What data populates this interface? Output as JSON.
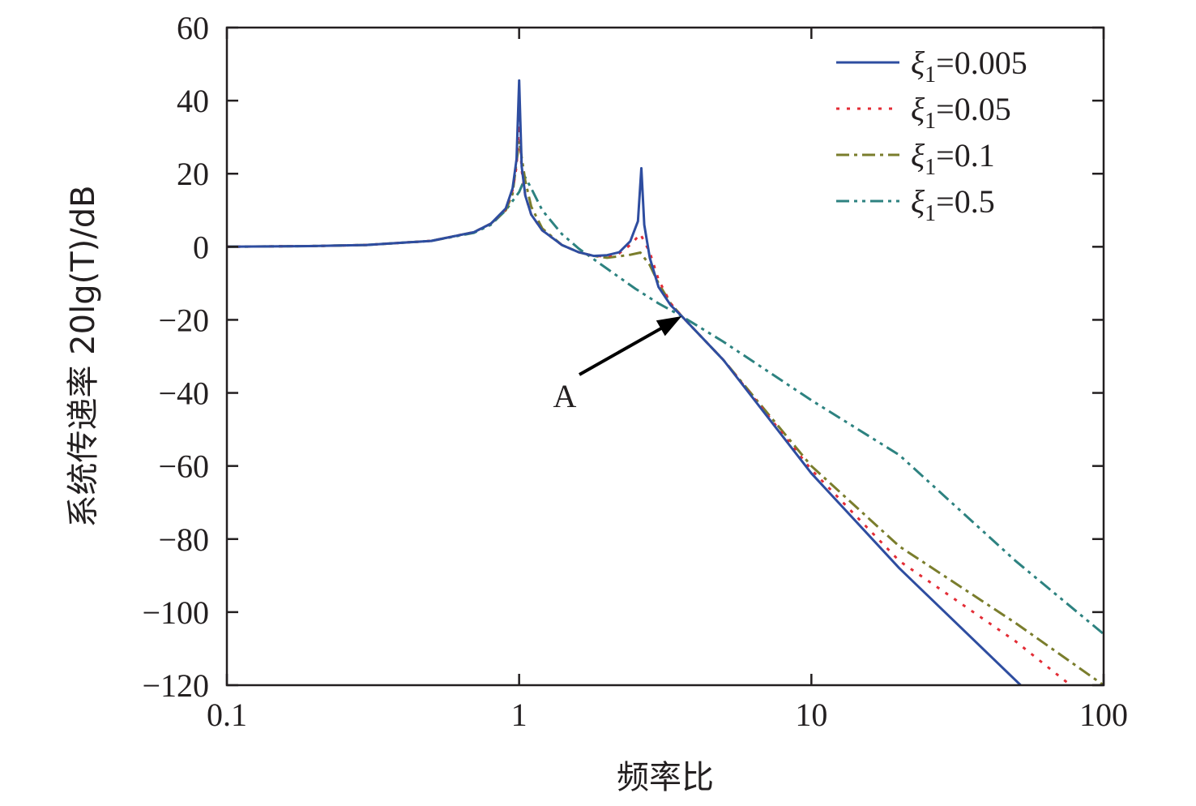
{
  "chart_data": {
    "type": "line",
    "title": "",
    "xlabel": "频率比",
    "ylabel": "系统传递率 20lg(T)/dB",
    "x_scale": "log",
    "xlim": [
      0.1,
      100
    ],
    "ylim": [
      -120,
      60
    ],
    "x_ticks": [
      0.1,
      1,
      10,
      100
    ],
    "x_tick_labels": [
      "0.1",
      "1",
      "10",
      "100"
    ],
    "y_ticks": [
      60,
      40,
      20,
      0,
      -20,
      -40,
      -60,
      -80,
      -100,
      -120
    ],
    "y_tick_labels": [
      "60",
      "40",
      "20",
      "0",
      "−20",
      "−40",
      "−60",
      "−80",
      "−100",
      "−120"
    ],
    "grid": false,
    "legend_position": "top-right",
    "series": [
      {
        "name": "ξ1=0.005",
        "legend_symbol": "ξ",
        "legend_sub": "1",
        "legend_value": "=0.005",
        "color": "#2e4da0",
        "dash": "solid",
        "x": [
          0.1,
          0.2,
          0.3,
          0.5,
          0.7,
          0.8,
          0.9,
          0.95,
          0.98,
          1.0,
          1.02,
          1.05,
          1.1,
          1.2,
          1.4,
          1.6,
          1.8,
          2.0,
          2.2,
          2.4,
          2.55,
          2.62,
          2.68,
          2.8,
          3.0,
          3.3,
          3.6,
          5,
          10,
          20,
          52
        ],
        "y": [
          0,
          0.2,
          0.5,
          1.6,
          4,
          6.3,
          10.5,
          16,
          24,
          45.5,
          22,
          14,
          8.8,
          4.5,
          0.5,
          -1.5,
          -2.5,
          -2.3,
          -1.5,
          1.5,
          7,
          21.5,
          6,
          -3,
          -11,
          -16,
          -19,
          -31,
          -62,
          -88,
          -120
        ]
      },
      {
        "name": "ξ1=0.05",
        "legend_symbol": "ξ",
        "legend_sub": "1",
        "legend_value": "=0.05",
        "color": "#e32d36",
        "dash": "dotted",
        "x": [
          0.1,
          0.2,
          0.3,
          0.5,
          0.7,
          0.8,
          0.9,
          0.95,
          0.98,
          1.0,
          1.02,
          1.05,
          1.1,
          1.2,
          1.4,
          1.6,
          1.8,
          2.0,
          2.2,
          2.4,
          2.6,
          2.8,
          3.0,
          3.3,
          3.6,
          5,
          10,
          20,
          50,
          77
        ],
        "y": [
          0,
          0.2,
          0.5,
          1.6,
          4,
          6.3,
          10.3,
          15.5,
          22,
          35,
          21,
          14,
          8.8,
          4.5,
          0.5,
          -1.5,
          -2.5,
          -2.6,
          -1.8,
          0.5,
          3.5,
          -1.5,
          -9,
          -15.5,
          -19,
          -31,
          -61,
          -86,
          -108,
          -120
        ]
      },
      {
        "name": "ξ1=0.1",
        "legend_symbol": "ξ",
        "legend_sub": "1",
        "legend_value": "=0.1",
        "color": "#7a7d2c",
        "dash": "dashdot",
        "x": [
          0.1,
          0.2,
          0.3,
          0.5,
          0.7,
          0.8,
          0.9,
          0.95,
          1.0,
          1.05,
          1.1,
          1.2,
          1.4,
          1.6,
          1.8,
          2.0,
          2.2,
          2.4,
          2.6,
          2.8,
          3.0,
          3.3,
          3.6,
          5,
          10,
          20,
          50,
          100
        ],
        "y": [
          0,
          0.2,
          0.5,
          1.6,
          4,
          6.3,
          10,
          14.5,
          29,
          18,
          11,
          5,
          0.5,
          -1.5,
          -2.5,
          -3,
          -2.6,
          -2.2,
          -1.6,
          -5,
          -10,
          -15.5,
          -19,
          -31,
          -60,
          -82,
          -103,
          -120
        ]
      },
      {
        "name": "ξ1=0.5",
        "legend_symbol": "ξ",
        "legend_sub": "1",
        "legend_value": "=0.5",
        "color": "#2d8280",
        "dash": "dashdotdot",
        "x": [
          0.1,
          0.2,
          0.3,
          0.5,
          0.7,
          0.8,
          0.9,
          1.0,
          1.05,
          1.1,
          1.2,
          1.4,
          1.6,
          2.0,
          2.5,
          3.0,
          3.6,
          5,
          10,
          20,
          50,
          100
        ],
        "y": [
          0,
          0.2,
          0.5,
          1.6,
          3.8,
          6,
          10,
          15,
          19,
          16,
          10,
          3.5,
          -0.5,
          -6,
          -11.5,
          -15.5,
          -19,
          -26,
          -42,
          -57,
          -86,
          -106
        ]
      }
    ],
    "annotations": [
      {
        "text": "A",
        "x": 3.6,
        "y": -19
      }
    ]
  }
}
